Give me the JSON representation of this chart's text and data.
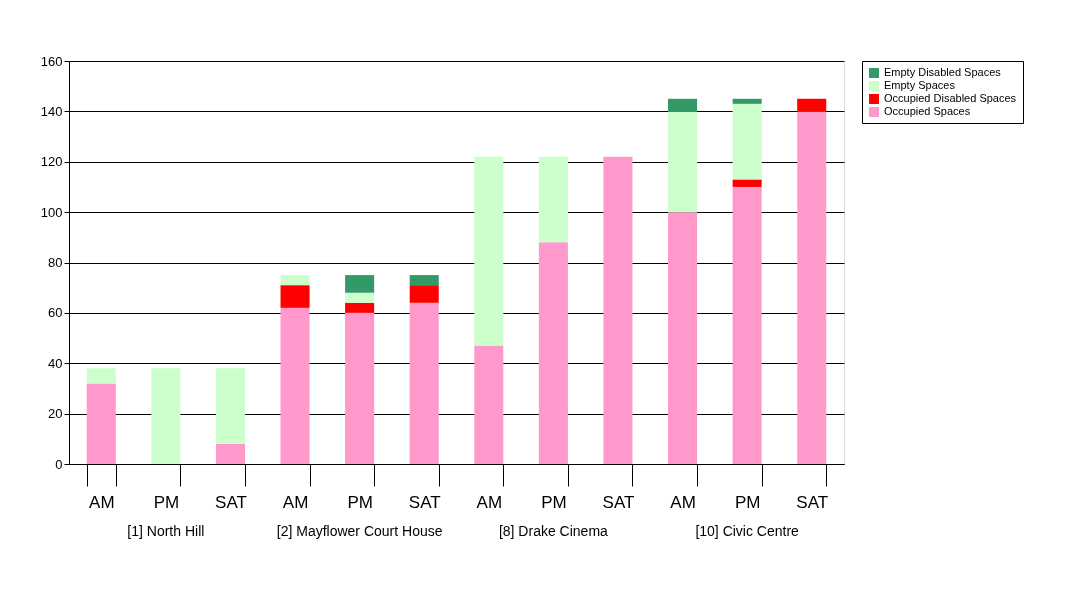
{
  "chart_data": {
    "type": "bar",
    "stacked": true,
    "categories": [
      "AM",
      "PM",
      "SAT",
      "AM",
      "PM",
      "SAT",
      "AM",
      "PM",
      "SAT",
      "AM",
      "PM",
      "SAT"
    ],
    "annotations": [
      "[1] North Hill",
      "[2] Mayflower Court House",
      "[8] Drake Cinema",
      "[10] Civic Centre"
    ],
    "series": [
      {
        "name": "Occupied Spaces",
        "color": "#ff99cc",
        "values": [
          32,
          0,
          8,
          62,
          60,
          64,
          47,
          88,
          122,
          100,
          110,
          140
        ]
      },
      {
        "name": "Occupied Disabled Spaces",
        "color": "#ff0000",
        "values": [
          0,
          0,
          0,
          9,
          4,
          7,
          0,
          0,
          0,
          0,
          3,
          5
        ]
      },
      {
        "name": "Empty Spaces",
        "color": "#ccffcc",
        "values": [
          6,
          38,
          30,
          4,
          4,
          0,
          75,
          34,
          0,
          40,
          30,
          0
        ]
      },
      {
        "name": "Empty Disabled Spaces",
        "color": "#339966",
        "values": [
          0,
          0,
          0,
          0,
          7,
          4,
          0,
          0,
          0,
          5,
          2,
          0
        ]
      }
    ],
    "ylim": [
      0,
      160
    ],
    "yticks": [
      0,
      20,
      40,
      60,
      80,
      100,
      120,
      140,
      160
    ],
    "grid": "y",
    "legend": "right"
  }
}
